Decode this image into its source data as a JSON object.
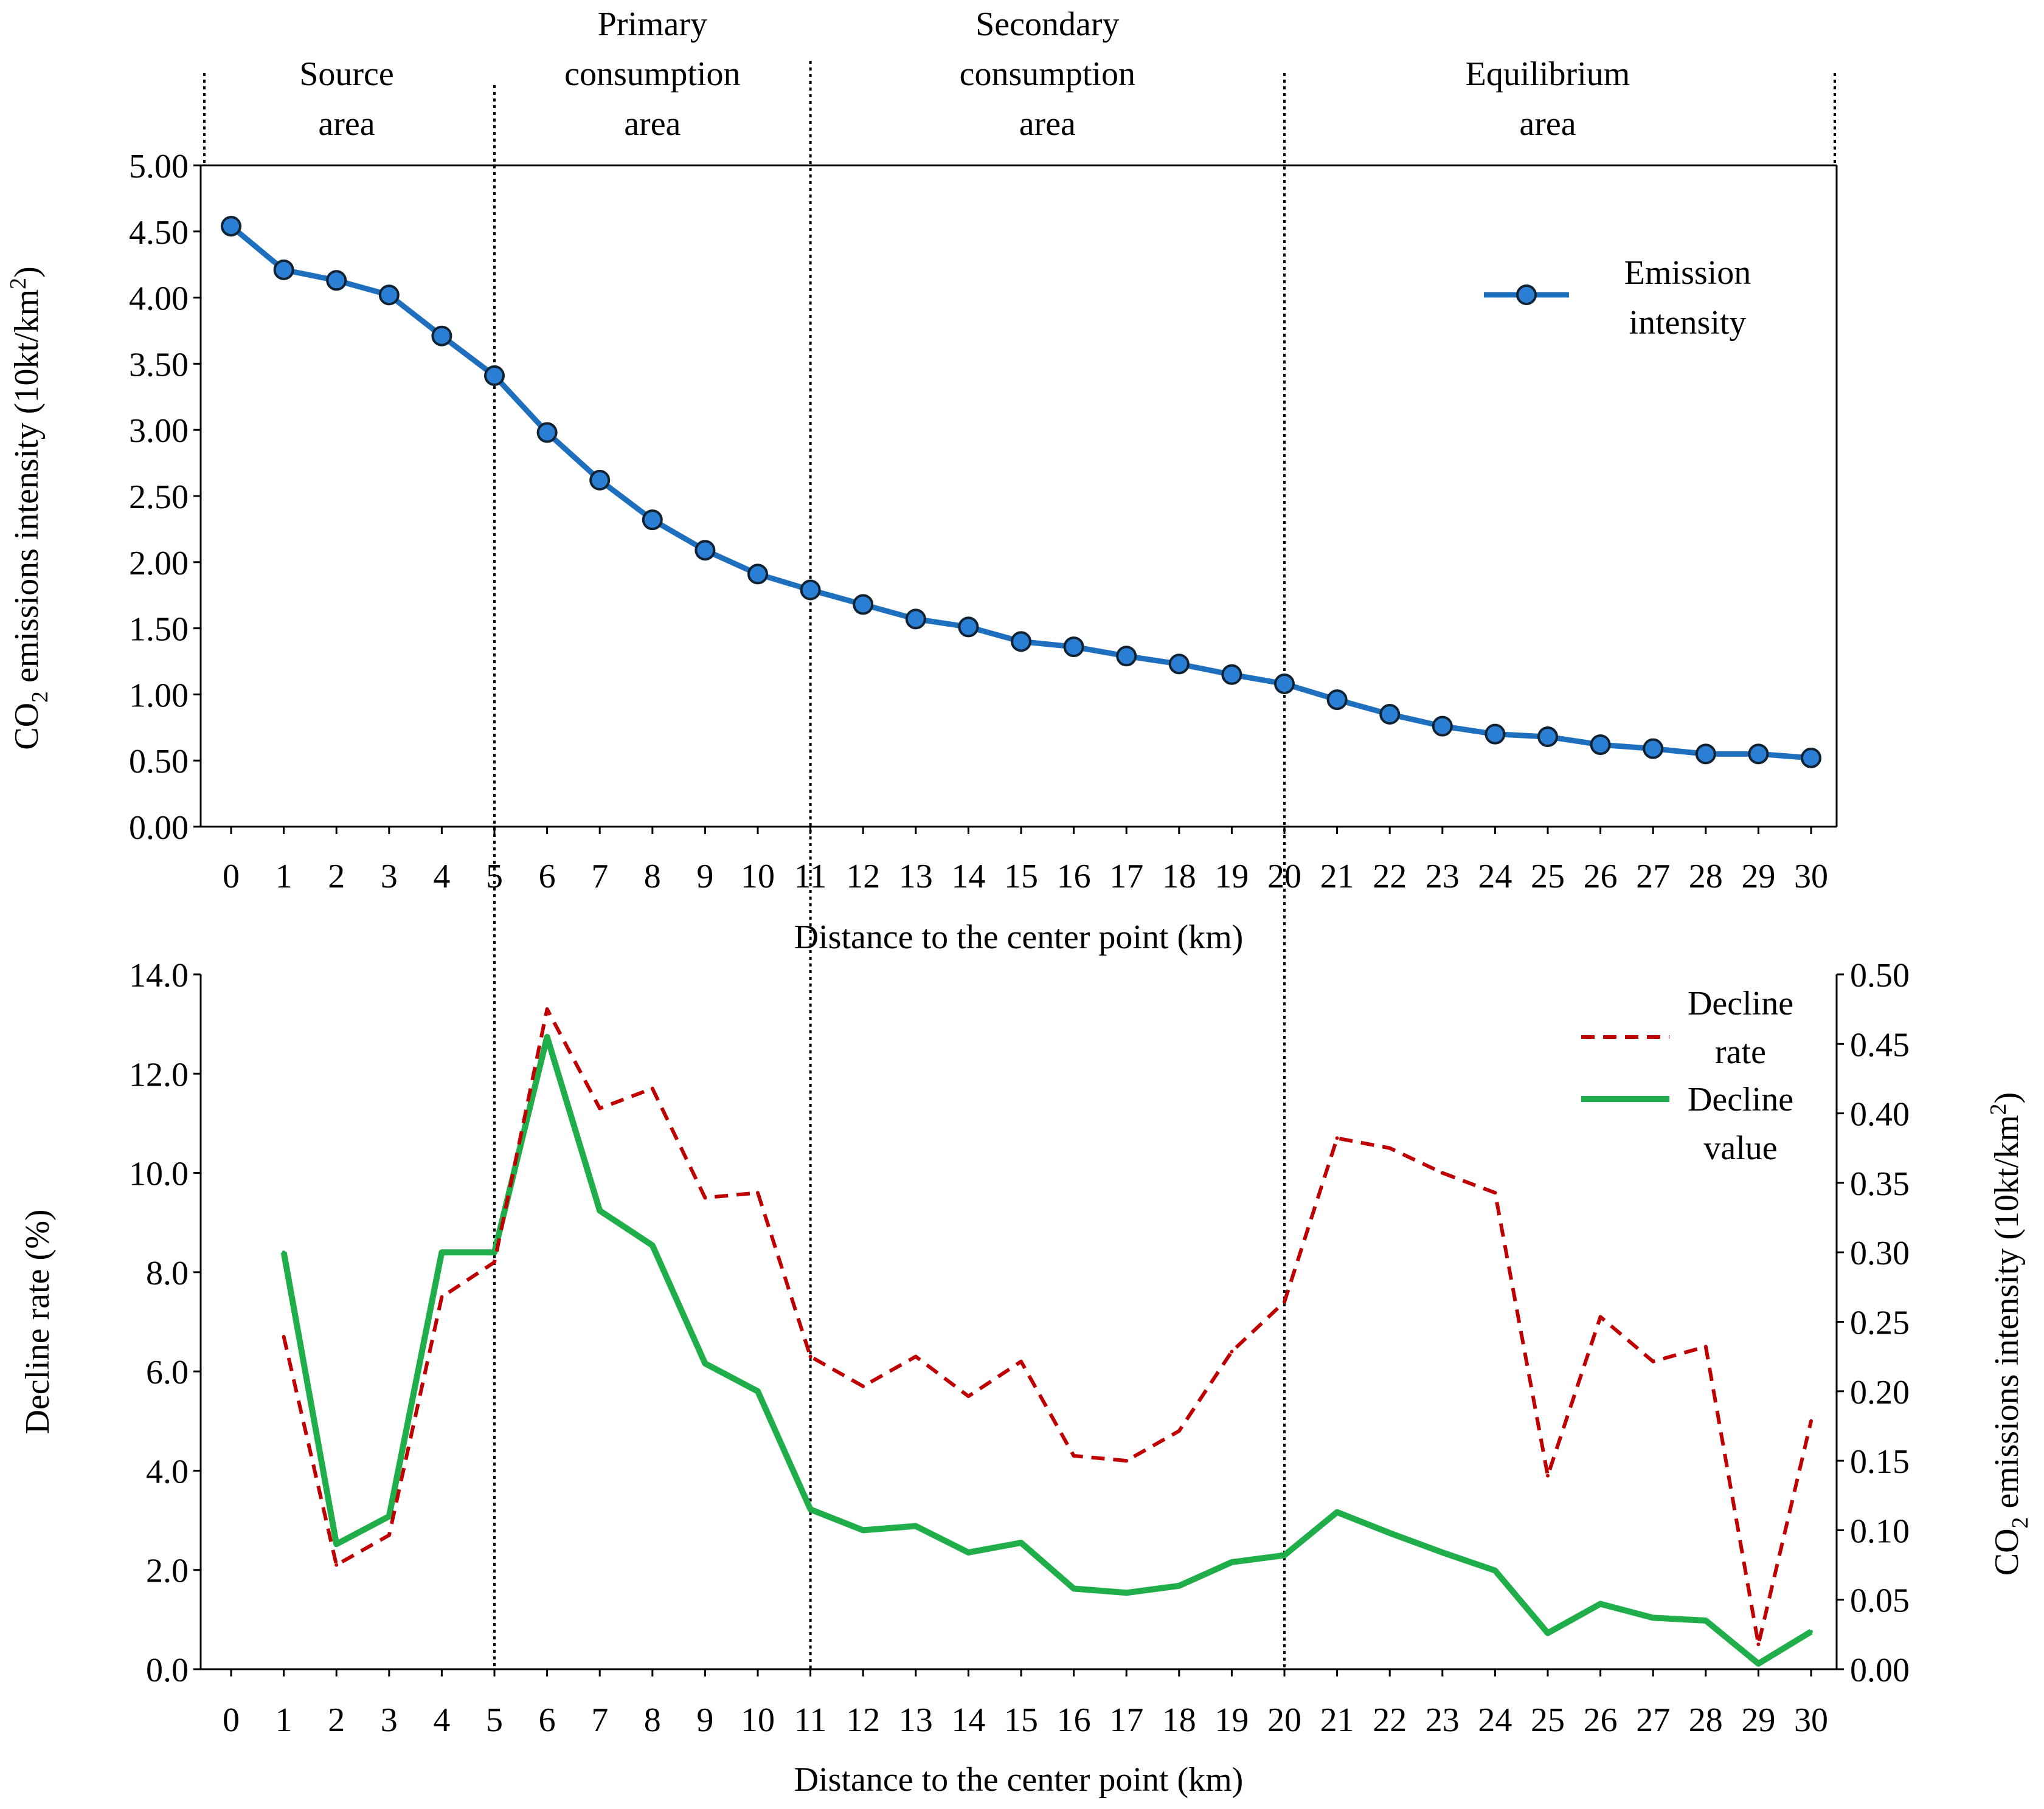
{
  "figure": "Two-panel chart of CO2 emissions intensity and its decline vs. distance to the center point",
  "zones": [
    {
      "lines": [
        "Source",
        "area"
      ],
      "from": 0,
      "to": 5
    },
    {
      "lines": [
        "Primary",
        "consumption",
        "area"
      ],
      "from": 5,
      "to": 11
    },
    {
      "lines": [
        "Secondary",
        "consumption",
        "area"
      ],
      "from": 11,
      "to": 20
    },
    {
      "lines": [
        "Equilibrium",
        "area"
      ],
      "from": 20,
      "to": 30
    }
  ],
  "colors": {
    "intensity": "#1f6fbf",
    "marker": "#2a7fd4",
    "decline_rate": "#c00000",
    "decline_value": "#1fae4a"
  },
  "chart_data": [
    {
      "type": "line",
      "title": "",
      "xlabel": "Distance to the center point (km)",
      "ylabel_parts": [
        "CO",
        "2",
        " emissions intensity (10kt/km",
        "2",
        ")"
      ],
      "x": [
        0,
        1,
        2,
        3,
        4,
        5,
        6,
        7,
        8,
        9,
        10,
        11,
        12,
        13,
        14,
        15,
        16,
        17,
        18,
        19,
        20,
        21,
        22,
        23,
        24,
        25,
        26,
        27,
        28,
        29,
        30
      ],
      "xticks": [
        "0",
        "1",
        "2",
        "3",
        "4",
        "5",
        "6",
        "7",
        "8",
        "9",
        "10",
        "11",
        "12",
        "13",
        "14",
        "15",
        "16",
        "17",
        "18",
        "19",
        "20",
        "21",
        "22",
        "23",
        "24",
        "25",
        "26",
        "27",
        "28",
        "29",
        "30"
      ],
      "ylim": [
        0,
        5
      ],
      "yticks": [
        "0.00",
        "0.50",
        "1.00",
        "1.50",
        "2.00",
        "2.50",
        "3.00",
        "3.50",
        "4.00",
        "4.50",
        "5.00"
      ],
      "legend": "upper-right",
      "series": [
        {
          "name": "Emission intensity",
          "legend_lines": [
            "Emission",
            "intensity"
          ],
          "values": [
            4.54,
            4.21,
            4.13,
            4.02,
            3.71,
            3.41,
            2.98,
            2.62,
            2.32,
            2.09,
            1.91,
            1.79,
            1.68,
            1.57,
            1.51,
            1.4,
            1.36,
            1.29,
            1.23,
            1.15,
            1.08,
            0.96,
            0.85,
            0.76,
            0.7,
            0.68,
            0.62,
            0.59,
            0.55,
            0.55,
            0.52
          ]
        }
      ]
    },
    {
      "type": "line",
      "title": "",
      "xlabel": "Distance to the center point (km)",
      "ylabel": "Decline rate (%)",
      "y2label_parts": [
        "CO",
        "2",
        " emissions intensity (10kt/km",
        "2",
        ")"
      ],
      "x": [
        1,
        2,
        3,
        4,
        5,
        6,
        7,
        8,
        9,
        10,
        11,
        12,
        13,
        14,
        15,
        16,
        17,
        18,
        19,
        20,
        21,
        22,
        23,
        24,
        25,
        26,
        27,
        28,
        29,
        30
      ],
      "xticks": [
        "0",
        "1",
        "2",
        "3",
        "4",
        "5",
        "6",
        "7",
        "8",
        "9",
        "10",
        "11",
        "12",
        "13",
        "14",
        "15",
        "16",
        "17",
        "18",
        "19",
        "20",
        "21",
        "22",
        "23",
        "24",
        "25",
        "26",
        "27",
        "28",
        "29",
        "30"
      ],
      "ylim": [
        0,
        14
      ],
      "yticks": [
        "0.0",
        "2.0",
        "4.0",
        "6.0",
        "8.0",
        "10.0",
        "12.0",
        "14.0"
      ],
      "y2lim": [
        0,
        0.5
      ],
      "y2ticks": [
        "0.00",
        "0.05",
        "0.10",
        "0.15",
        "0.20",
        "0.25",
        "0.30",
        "0.35",
        "0.40",
        "0.45",
        "0.50"
      ],
      "legend": "upper-right",
      "series": [
        {
          "name": "Decline rate",
          "legend_lines": [
            "Decline",
            "rate"
          ],
          "axis": "left",
          "style": "dashed",
          "values": [
            6.7,
            2.1,
            2.7,
            7.5,
            8.2,
            13.3,
            11.3,
            11.7,
            9.5,
            9.6,
            6.3,
            5.7,
            6.3,
            5.5,
            6.2,
            4.3,
            4.2,
            4.8,
            6.4,
            7.4,
            10.7,
            10.5,
            10.0,
            9.6,
            3.9,
            7.1,
            6.2,
            6.5,
            0.5,
            5.0
          ]
        },
        {
          "name": "Decline value",
          "legend_lines": [
            "Decline",
            "value"
          ],
          "axis": "right",
          "style": "solid",
          "values": [
            0.3,
            0.09,
            0.11,
            0.3,
            0.3,
            0.455,
            0.33,
            0.305,
            0.22,
            0.2,
            0.115,
            0.1,
            0.103,
            0.084,
            0.091,
            0.058,
            0.055,
            0.06,
            0.077,
            0.082,
            0.113,
            0.098,
            0.084,
            0.071,
            0.026,
            0.047,
            0.037,
            0.035,
            0.004,
            0.027
          ]
        }
      ]
    }
  ]
}
